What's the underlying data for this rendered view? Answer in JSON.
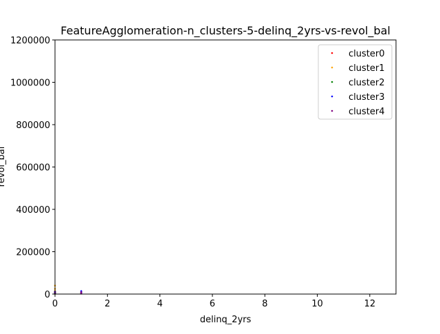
{
  "chart_data": {
    "type": "scatter",
    "title": "FeatureAgglomeration-n_clusters-5-delinq_2yrs-vs-revol_bal",
    "xlabel": "delinq_2yrs",
    "ylabel": "revol_bal",
    "xlim": [
      0,
      13
    ],
    "ylim": [
      0,
      1200000
    ],
    "xticks": [
      "0",
      "2",
      "4",
      "6",
      "8",
      "10",
      "12"
    ],
    "yticks": [
      "0",
      "200000",
      "400000",
      "600000",
      "800000",
      "1000000",
      "1200000"
    ],
    "legend_position": "top-right",
    "grid": false,
    "series": [
      {
        "name": "cluster0",
        "color": "#ff0000",
        "points": [
          [
            0,
            2000
          ],
          [
            0,
            6000
          ],
          [
            0,
            12000
          ],
          [
            1,
            3000
          ],
          [
            1,
            8000
          ]
        ]
      },
      {
        "name": "cluster1",
        "color": "#ffa500",
        "points": [
          [
            0,
            1000
          ],
          [
            0,
            4000
          ],
          [
            0,
            15000
          ],
          [
            0,
            25000
          ],
          [
            0,
            40000
          ],
          [
            1,
            5000
          ]
        ]
      },
      {
        "name": "cluster2",
        "color": "#008000",
        "points": [
          [
            0,
            3000
          ],
          [
            0,
            9000
          ],
          [
            1,
            4000
          ],
          [
            1,
            10000
          ]
        ]
      },
      {
        "name": "cluster3",
        "color": "#0000ff",
        "points": [
          [
            0,
            5000
          ],
          [
            0,
            11000
          ],
          [
            1,
            6000
          ],
          [
            1,
            14000
          ]
        ]
      },
      {
        "name": "cluster4",
        "color": "#800080",
        "points": [
          [
            0,
            7000
          ],
          [
            1,
            2000
          ],
          [
            1,
            9000
          ]
        ]
      }
    ]
  }
}
